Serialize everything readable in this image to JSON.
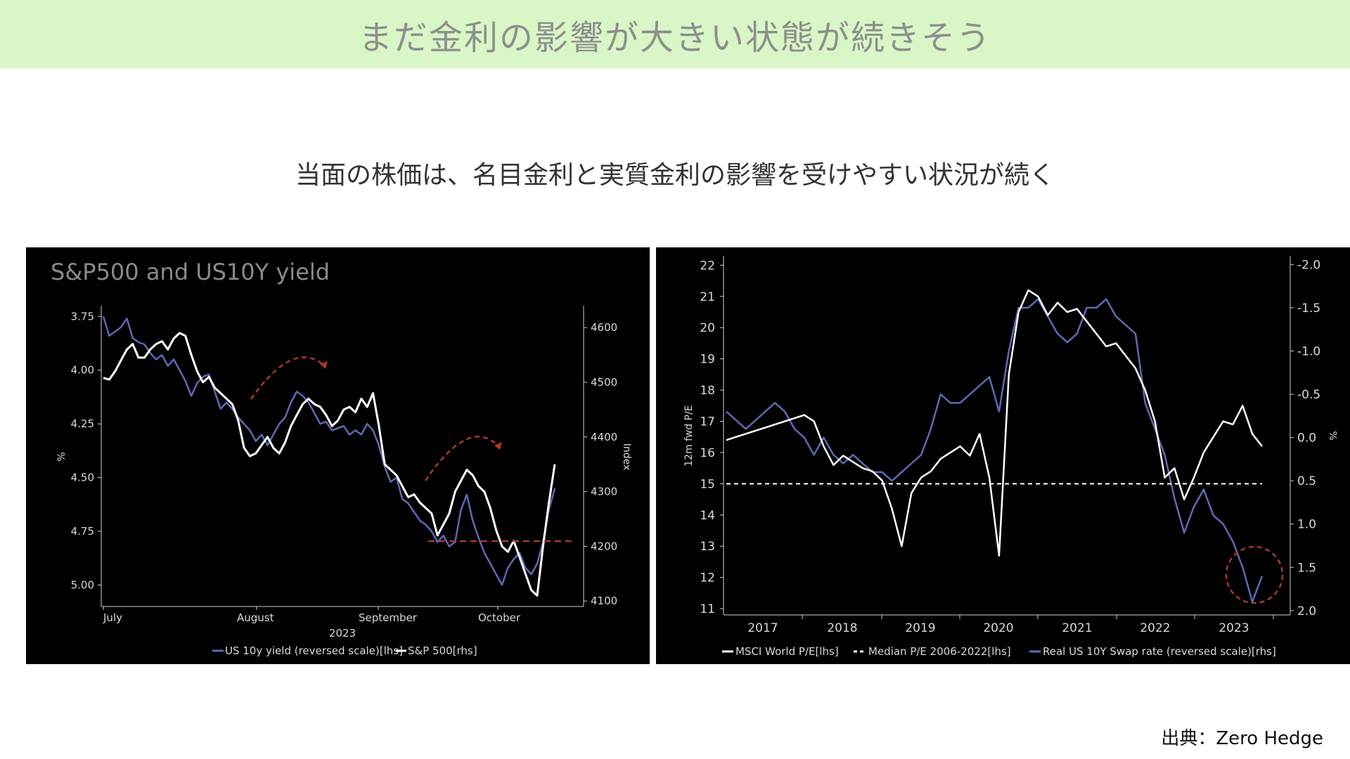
{
  "header": {
    "title": "まだ金利の影響が大きい状態が続きそう"
  },
  "subtitle": "当面の株価は、名目金利と実質金利の影響を受けやすい状況が続く",
  "source": "出典：Zero Hedge",
  "colors": {
    "banner_bg": "#d9f6c6",
    "white_series": "#ffffff",
    "blue_series": "#5c6ab5",
    "annotation": "#a83a2a"
  },
  "chart_data": [
    {
      "type": "line",
      "title": "S&P500 and US10Y yield",
      "xlabel": "2023",
      "ylabel_left": "%",
      "ylabel_right": "Index",
      "x_ticks": [
        "July",
        "August",
        "September",
        "October"
      ],
      "yleft_ticks": [
        "3.75",
        "4.00",
        "4.25",
        "4.50",
        "4.75",
        "5.00"
      ],
      "yright_ticks": [
        "4600",
        "4500",
        "4400",
        "4300",
        "4200",
        "4100"
      ],
      "yleft_lim": [
        5.1,
        3.7
      ],
      "yright_lim": [
        4090,
        4640
      ],
      "yleft_reversed": true,
      "series": [
        {
          "name": "US 10y yield (reversed scale)[lhs]",
          "axis": "left",
          "color": "#5c6ab5",
          "values": [
            3.75,
            3.84,
            3.82,
            3.8,
            3.76,
            3.85,
            3.87,
            3.88,
            3.92,
            3.95,
            3.93,
            3.98,
            3.95,
            4.0,
            4.05,
            4.12,
            4.06,
            4.03,
            4.02,
            4.1,
            4.18,
            4.15,
            4.18,
            4.22,
            4.25,
            4.28,
            4.33,
            4.3,
            4.35,
            4.3,
            4.25,
            4.22,
            4.15,
            4.1,
            4.12,
            4.15,
            4.2,
            4.25,
            4.24,
            4.28,
            4.27,
            4.26,
            4.3,
            4.28,
            4.3,
            4.25,
            4.28,
            4.35,
            4.45,
            4.52,
            4.5,
            4.6,
            4.62,
            4.66,
            4.7,
            4.72,
            4.75,
            4.8,
            4.77,
            4.82,
            4.8,
            4.65,
            4.58,
            4.7,
            4.78,
            4.85,
            4.9,
            4.95,
            5.0,
            4.92,
            4.88,
            4.85,
            4.92,
            4.95,
            4.9,
            4.8,
            4.65,
            4.55
          ]
        },
        {
          "name": "S&P 500[rhs]",
          "axis": "right",
          "color": "#ffffff",
          "values": [
            4508,
            4505,
            4520,
            4540,
            4560,
            4570,
            4545,
            4545,
            4560,
            4570,
            4575,
            4560,
            4580,
            4590,
            4585,
            4550,
            4520,
            4500,
            4510,
            4490,
            4480,
            4470,
            4460,
            4430,
            4380,
            4365,
            4370,
            4385,
            4400,
            4380,
            4370,
            4390,
            4420,
            4440,
            4460,
            4470,
            4460,
            4455,
            4440,
            4420,
            4430,
            4450,
            4455,
            4445,
            4470,
            4455,
            4480,
            4420,
            4350,
            4340,
            4330,
            4310,
            4290,
            4295,
            4280,
            4270,
            4260,
            4220,
            4240,
            4260,
            4300,
            4320,
            4340,
            4330,
            4310,
            4300,
            4270,
            4230,
            4200,
            4190,
            4210,
            4180,
            4150,
            4120,
            4110,
            4200,
            4280,
            4350
          ]
        }
      ]
    },
    {
      "type": "line",
      "title": "",
      "ylabel_left": "12m fwd P/E",
      "ylabel_right": "%",
      "x_ticks": [
        "2017",
        "2018",
        "2019",
        "2020",
        "2021",
        "2022",
        "2023"
      ],
      "yleft_ticks": [
        "22",
        "21",
        "20",
        "19",
        "18",
        "17",
        "16",
        "15",
        "14",
        "13",
        "12",
        "11"
      ],
      "yright_ticks": [
        "-2.0",
        "-1.5",
        "-1.0",
        "-0.5",
        "0.0",
        "0.5",
        "1.0",
        "1.5",
        "2.0"
      ],
      "yleft_lim": [
        10.8,
        22.3
      ],
      "yright_lim": [
        2.05,
        -2.1
      ],
      "yright_reversed": true,
      "series": [
        {
          "name": "MSCI World P/E[lhs]",
          "axis": "left",
          "color": "#ffffff",
          "values": [
            16.4,
            16.5,
            16.6,
            16.7,
            16.8,
            16.9,
            17.0,
            17.1,
            17.2,
            17.0,
            16.2,
            15.6,
            15.9,
            15.7,
            15.5,
            15.4,
            15.1,
            14.2,
            13.0,
            14.7,
            15.2,
            15.4,
            15.8,
            16.0,
            16.2,
            15.9,
            16.6,
            15.2,
            12.7,
            18.5,
            20.5,
            21.2,
            21.0,
            20.4,
            20.8,
            20.5,
            20.6,
            20.2,
            19.8,
            19.4,
            19.5,
            19.1,
            18.7,
            18.0,
            17.0,
            15.2,
            15.5,
            14.5,
            15.2,
            16.0,
            16.5,
            17.0,
            16.9,
            17.5,
            16.6,
            16.2
          ]
        },
        {
          "name": "Median P/E 2006-2022[lhs]",
          "axis": "left",
          "color": "#ffffff",
          "dashed": true,
          "values": [
            15.0,
            15.0,
            15.0,
            15.0,
            15.0,
            15.0,
            15.0,
            15.0,
            15.0,
            15.0,
            15.0,
            15.0,
            15.0,
            15.0,
            15.0,
            15.0,
            15.0,
            15.0,
            15.0,
            15.0,
            15.0,
            15.0,
            15.0,
            15.0,
            15.0,
            15.0,
            15.0,
            15.0,
            15.0,
            15.0,
            15.0,
            15.0,
            15.0,
            15.0,
            15.0,
            15.0,
            15.0,
            15.0,
            15.0,
            15.0,
            15.0,
            15.0,
            15.0,
            15.0,
            15.0,
            15.0,
            15.0,
            15.0,
            15.0,
            15.0,
            15.0,
            15.0,
            15.0,
            15.0,
            15.0,
            15.0
          ]
        },
        {
          "name": "Real US 10Y Swap rate (reversed scale)[rhs]",
          "axis": "right",
          "color": "#5c6ab5",
          "values": [
            -0.3,
            -0.2,
            -0.1,
            -0.2,
            -0.3,
            -0.4,
            -0.3,
            -0.1,
            0.0,
            0.2,
            0.0,
            0.2,
            0.3,
            0.2,
            0.3,
            0.4,
            0.4,
            0.5,
            0.4,
            0.3,
            0.2,
            -0.1,
            -0.5,
            -0.4,
            -0.4,
            -0.5,
            -0.6,
            -0.7,
            -0.3,
            -1.0,
            -1.5,
            -1.5,
            -1.6,
            -1.4,
            -1.2,
            -1.1,
            -1.2,
            -1.5,
            -1.5,
            -1.6,
            -1.4,
            -1.3,
            -1.2,
            -0.4,
            -0.1,
            0.2,
            0.7,
            1.1,
            0.8,
            0.6,
            0.9,
            1.0,
            1.2,
            1.5,
            1.9,
            1.6
          ]
        }
      ]
    }
  ]
}
